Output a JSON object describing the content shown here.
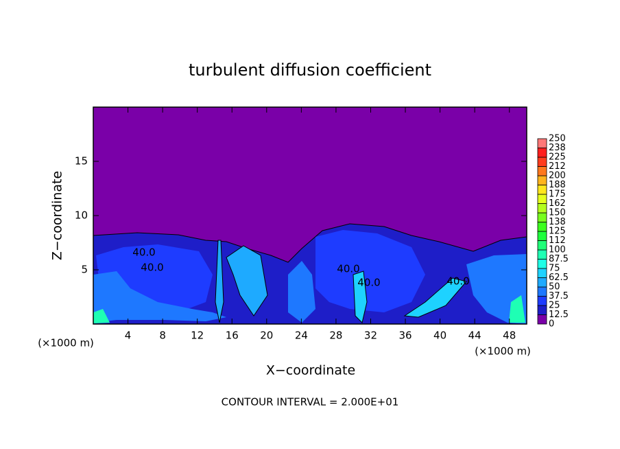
{
  "chart_data": {
    "type": "contour",
    "title": "turbulent diffusion coefficient",
    "x_label": "X−coordinate",
    "y_label": "Z−coordinate",
    "x_unit_left": "(×1000 m)",
    "x_unit_right": "(×1000 m)",
    "footer": "CONTOUR INTERVAL = 2.000E+01",
    "xlim": [
      0,
      50
    ],
    "ylim": [
      0,
      20
    ],
    "xticks": [
      4,
      8,
      12,
      16,
      20,
      24,
      28,
      32,
      36,
      40,
      44,
      48
    ],
    "yticks": [
      5,
      10,
      15
    ],
    "contour_labels": [
      "40.0",
      "40.0",
      "40.0",
      "40.0",
      "40.0"
    ],
    "levels": [
      0,
      12.5,
      25,
      37.5,
      50,
      62.5,
      75,
      87.5,
      100,
      {
        "value": 112.5,
        "label": "112"
      },
      125,
      {
        "value": 137.5,
        "label": "138"
      },
      150,
      {
        "value": 162.5,
        "label": "162"
      },
      175,
      {
        "value": 187.5,
        "label": "188"
      },
      200,
      {
        "value": 212.5,
        "label": "212"
      },
      225,
      {
        "value": 237.5,
        "label": "238"
      },
      250
    ],
    "colors": [
      "#7a00a8",
      "#1e1ec8",
      "#1e3cff",
      "#1e78ff",
      "#1eaaff",
      "#1ed2ff",
      "#1effe6",
      "#1effb4",
      "#1eff78",
      "#1eff3c",
      "#3cff1e",
      "#78ff1e",
      "#b4ff1e",
      "#e6ff1e",
      "#ffe61e",
      "#ffb41e",
      "#ff781e",
      "#ff3c1e",
      "#ff1e1e",
      "#ff7878"
    ]
  }
}
